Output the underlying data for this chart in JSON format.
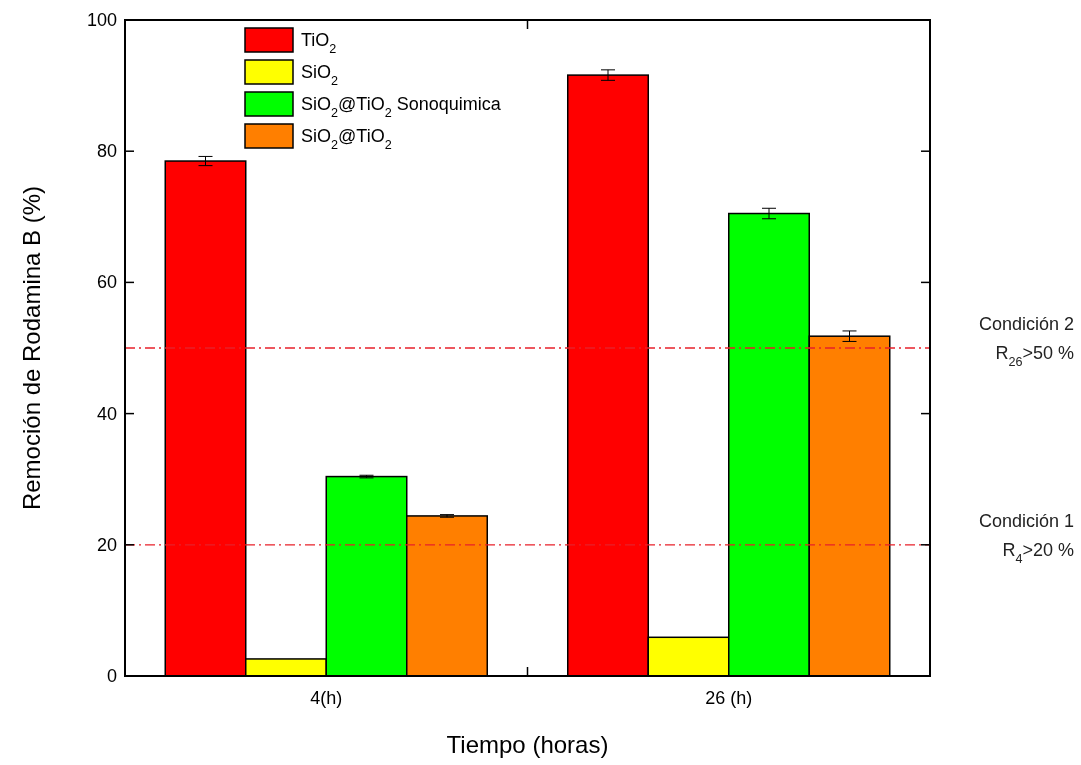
{
  "chart_data": {
    "type": "bar",
    "xlabel": "Tiempo (horas)",
    "ylabel": "Remoción de Rodamina B (%)",
    "categories": [
      "4(h)",
      "26 (h)"
    ],
    "series": [
      {
        "name": "TiO$_{2}$",
        "color": "#ff0000",
        "values": [
          78.5,
          91.6
        ],
        "errors": [
          0.7,
          0.8
        ]
      },
      {
        "name": "SiO$_{2}$",
        "color": "#ffff00",
        "values": [
          2.6,
          5.9
        ],
        "errors": [
          null,
          null
        ]
      },
      {
        "name": "SiO$_{2}$@TiO$_{2}$ Sonoquimica",
        "color": "#00ff00",
        "values": [
          30.4,
          70.5
        ],
        "errors": [
          0.2,
          0.8
        ]
      },
      {
        "name": "SiO$_{2}$@TiO$_{2}$",
        "color": "#ff7f00",
        "values": [
          24.4,
          51.8
        ],
        "errors": [
          0.2,
          0.8
        ]
      }
    ],
    "ylim": [
      0,
      100
    ],
    "yticks": [
      0,
      20,
      40,
      60,
      80,
      100
    ],
    "grid": false,
    "legend": "top left",
    "ref_lines": [
      {
        "axis": "y",
        "value": 50,
        "label": "Condición 2\nR$_{26}$>50 %",
        "color": "#e8202a",
        "line_style": "dashed"
      },
      {
        "axis": "y",
        "value": 20,
        "label": "Condición 1\nR$_{4}$>20 %",
        "color": "#e8202a",
        "line_style": "dashed"
      }
    ]
  }
}
